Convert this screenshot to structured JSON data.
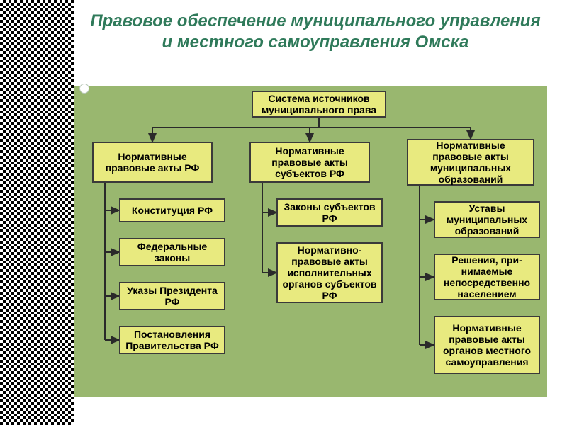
{
  "title": {
    "text": "Правовое обеспечение муниципального управления и местного самоуправления Омска",
    "color": "#2f7a5a",
    "fontsize": 24
  },
  "chart": {
    "background": "#99b76f",
    "box_fill": "#e8ea7f",
    "box_border": "#3a3a3a",
    "box_fontsize": 14,
    "edge_color": "#2a2a2a",
    "edge_width": 2
  },
  "root": {
    "label": "Система источников муниципального права"
  },
  "columns": [
    {
      "header": "Нормативные правовые акты РФ",
      "items": [
        "Конституция РФ",
        "Федеральные законы",
        "Указы Президента РФ",
        "Постановления Правительства РФ"
      ]
    },
    {
      "header": "Нормативные правовые акты субъектов РФ",
      "items": [
        "Законы субъектов РФ",
        "Нормативно-правовые акты исполнительных органов субъектов РФ"
      ]
    },
    {
      "header": "Нормативные правовые акты муниципальных образований",
      "items": [
        "Уставы муниципальных образований",
        "Решения, при­нимаемые непосредственно населением",
        "Нормативные правовые акты органов местного самоуправления"
      ]
    }
  ]
}
